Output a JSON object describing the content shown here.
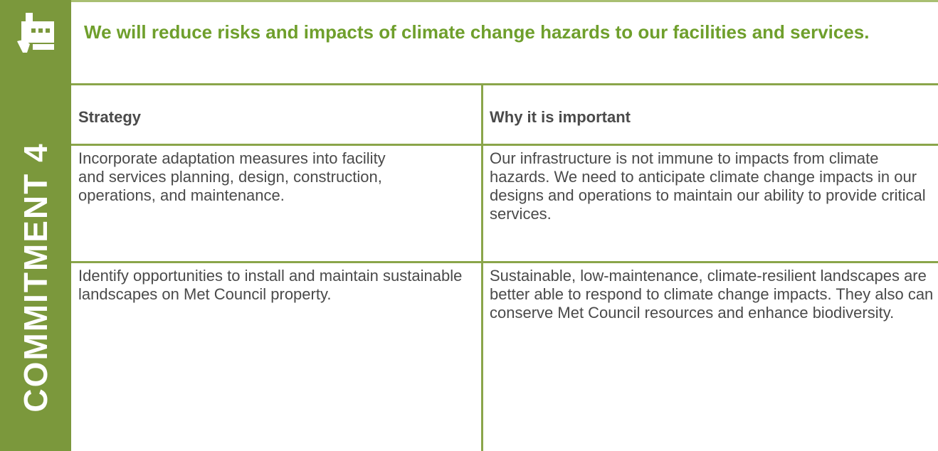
{
  "sidebar": {
    "label": "COMMITMENT 4"
  },
  "header": {
    "title": "We will reduce risks and impacts of climate change hazards to our facilities and services."
  },
  "table": {
    "columns": [
      "Strategy",
      "Why it is important"
    ],
    "rows": [
      [
        "Incorporate adaptation measures into facility and services planning, design, construction, operations, and maintenance.",
        "Our infrastructure is not immune to impacts from climate hazards. We need to anticipate climate change impacts in our designs and operations to maintain our ability to provide critical services."
      ],
      [
        "Identify opportunities to install and maintain sustainable landscapes on Met Council property.",
        "Sustainable, low-maintenance, climate-resilient landscapes are better able to respond to climate change impacts. They also can conserve Met Council resources and enhance biodiversity."
      ]
    ]
  }
}
